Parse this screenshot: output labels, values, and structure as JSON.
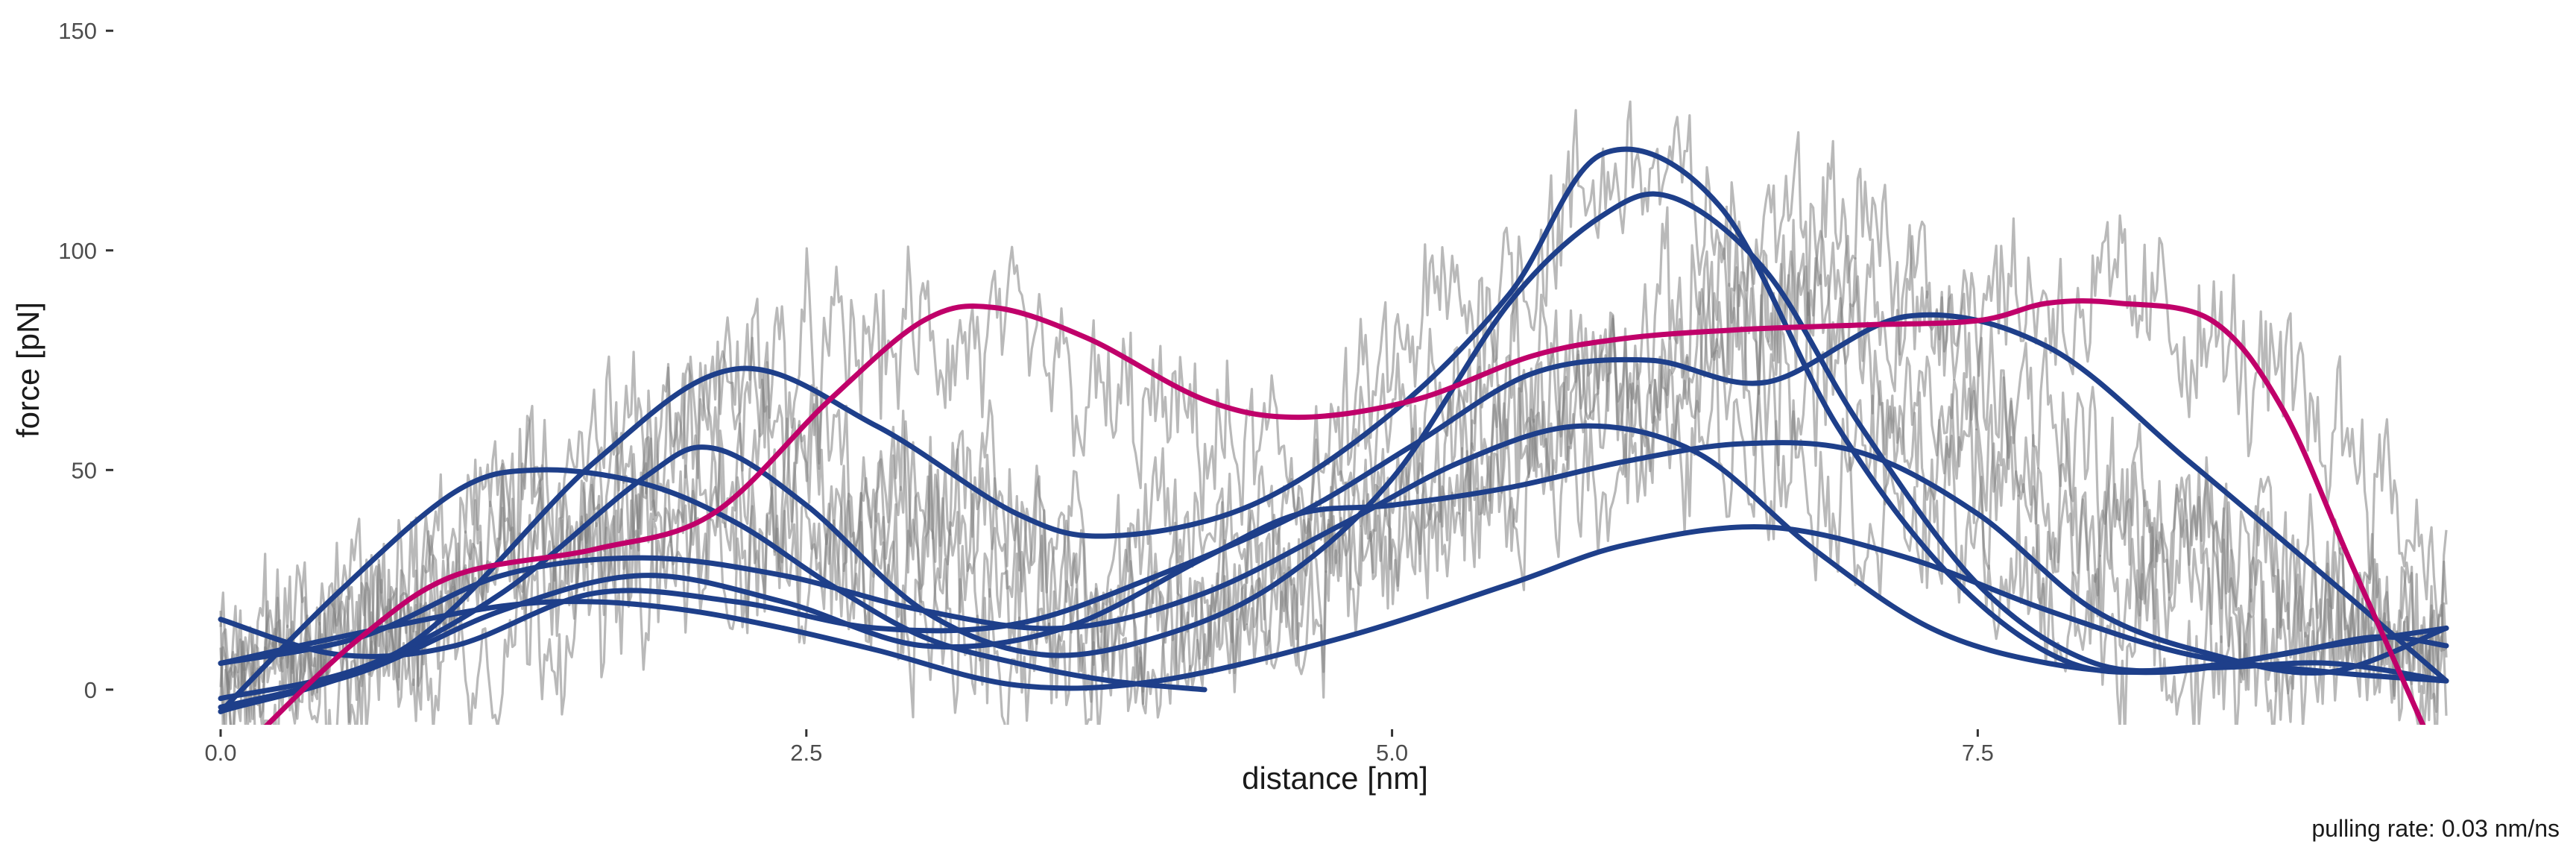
{
  "chart_data": {
    "type": "line",
    "xlabel": "distance [nm]",
    "ylabel": "force [pN]",
    "caption": "pulling rate: 0.03 nm/ns",
    "xlim": [
      0,
      9.5
    ],
    "ylim": [
      -8,
      157
    ],
    "x_ticks": [
      0.0,
      2.5,
      5.0,
      7.5
    ],
    "x_tick_labels": [
      "0.0",
      "2.5",
      "5.0",
      "7.5"
    ],
    "y_ticks": [
      0,
      50,
      100,
      150
    ],
    "y_tick_labels": [
      "0",
      "50",
      "100",
      "150"
    ],
    "grid": false,
    "legend": "none",
    "colors": {
      "fit": "#1e3f8a",
      "highlight": "#c0006a",
      "raw": "#808080",
      "text": "#4d4d4d"
    },
    "raw_traces": [
      {
        "x": [
          0,
          0.6,
          1.3,
          2.2,
          3.0,
          3.7,
          4.4,
          5.2,
          5.9,
          6.5,
          7.2,
          8.0,
          8.8,
          9.5
        ],
        "y": [
          -3,
          12,
          28,
          48,
          40,
          26,
          20,
          38,
          62,
          78,
          58,
          30,
          18,
          12
        ]
      },
      {
        "x": [
          0,
          0.7,
          1.5,
          2.3,
          3.1,
          3.9,
          4.6,
          5.3,
          6.0,
          6.7,
          7.3,
          8.1,
          8.9,
          9.5
        ],
        "y": [
          2,
          26,
          40,
          72,
          80,
          62,
          50,
          88,
          118,
          95,
          60,
          38,
          22,
          6
        ]
      },
      {
        "x": [
          0,
          0.8,
          1.6,
          2.4,
          3.2,
          4.0,
          4.8,
          5.5,
          6.2,
          6.9,
          7.6,
          8.3,
          9.0,
          9.5
        ],
        "y": [
          -5,
          8,
          20,
          35,
          22,
          14,
          32,
          60,
          85,
          108,
          70,
          40,
          18,
          4
        ]
      },
      {
        "x": [
          0,
          0.7,
          1.4,
          2.2,
          3.0,
          3.8,
          4.5,
          5.3,
          6.0,
          6.8,
          7.5,
          8.3,
          9.0,
          9.5
        ],
        "y": [
          5,
          20,
          52,
          62,
          45,
          30,
          42,
          66,
          78,
          86,
          92,
          84,
          60,
          30
        ]
      },
      {
        "x": [
          0,
          0.6,
          1.3,
          2.0,
          2.8,
          3.6,
          4.4,
          5.1,
          5.8,
          6.5,
          7.2,
          8.0,
          8.7,
          9.5
        ],
        "y": [
          0,
          15,
          30,
          40,
          18,
          8,
          16,
          40,
          52,
          58,
          38,
          14,
          6,
          10
        ]
      }
    ],
    "series": [
      {
        "color": "#1e3f8a",
        "x": [
          0,
          0.5,
          1.0,
          1.35,
          1.8,
          2.2,
          2.6,
          3.0,
          3.4,
          3.8,
          4.2
        ],
        "y": [
          -5,
          22,
          45,
          50,
          47,
          38,
          24,
          12,
          6,
          2,
          0
        ]
      },
      {
        "color": "#1e3f8a",
        "x": [
          0,
          0.6,
          1.2,
          1.6,
          2.0,
          2.4,
          2.8,
          3.4,
          4.0,
          4.8,
          5.5,
          6.0,
          6.6,
          7.2,
          7.8,
          8.4,
          9.0,
          9.5
        ],
        "y": [
          6,
          13,
          19,
          20,
          18,
          14,
          9,
          1,
          2,
          12,
          24,
          33,
          37,
          30,
          18,
          8,
          4,
          2
        ]
      },
      {
        "color": "#1e3f8a",
        "x": [
          0,
          0.8,
          1.6,
          2.2,
          2.8,
          3.4,
          3.8,
          4.4,
          5.0,
          5.5,
          5.9,
          6.4,
          6.9,
          7.4,
          7.9,
          8.4,
          9.0,
          9.5
        ],
        "y": [
          -5,
          10,
          52,
          73,
          60,
          40,
          35,
          42,
          63,
          90,
          122,
          110,
          60,
          25,
          6,
          5,
          10,
          14
        ]
      },
      {
        "color": "#1e3f8a",
        "x": [
          0,
          0.6,
          1.2,
          1.8,
          2.1,
          2.5,
          3.0,
          3.5,
          4.0,
          4.5,
          5.0,
          5.5,
          5.9,
          6.2,
          6.6,
          7.0,
          7.5,
          8.0,
          8.5,
          9.0,
          9.5
        ],
        "y": [
          -2,
          5,
          22,
          48,
          55,
          42,
          18,
          8,
          12,
          24,
          48,
          88,
          108,
          112,
          95,
          60,
          24,
          6,
          5,
          6,
          2
        ]
      },
      {
        "color": "#1e3f8a",
        "x": [
          0,
          0.5,
          1.0,
          1.6,
          2.2,
          2.8,
          3.4,
          4.0,
          4.6,
          5.1,
          5.6,
          6.1,
          6.6,
          7.2,
          7.8,
          8.4,
          9.0,
          9.5
        ],
        "y": [
          16,
          8,
          10,
          22,
          20,
          14,
          15,
          26,
          40,
          56,
          72,
          75,
          70,
          85,
          78,
          52,
          25,
          2
        ]
      },
      {
        "color": "#1e3f8a",
        "x": [
          0,
          0.6,
          1.2,
          1.8,
          2.4,
          3.0,
          3.6,
          4.2,
          4.8,
          5.3,
          5.8,
          6.3,
          6.8,
          7.3,
          7.8,
          8.3,
          8.8,
          9.2,
          9.5
        ],
        "y": [
          6,
          12,
          26,
          30,
          26,
          18,
          14,
          22,
          38,
          52,
          60,
          54,
          32,
          14,
          6,
          4,
          8,
          12,
          10
        ]
      },
      {
        "color": "#1e3f8a",
        "x": [
          0,
          0.6,
          1.2,
          1.8,
          2.4,
          3.0,
          3.6,
          4.2,
          4.6,
          5.0,
          5.5,
          6.0,
          6.5,
          7.0,
          7.5,
          8.0,
          8.5,
          9.0,
          9.5
        ],
        "y": [
          -4,
          4,
          18,
          26,
          20,
          10,
          14,
          30,
          40,
          42,
          46,
          52,
          56,
          54,
          40,
          18,
          8,
          4,
          14
        ]
      },
      {
        "color": "#c0006a",
        "x": [
          0,
          0.2,
          0.6,
          1.0,
          1.6,
          2.1,
          2.6,
          3.0,
          3.3,
          3.7,
          4.2,
          4.6,
          5.1,
          5.6,
          6.0,
          6.5,
          7.0,
          7.5,
          7.8,
          8.1,
          8.5,
          8.8,
          9.1,
          9.5
        ],
        "y": [
          -20,
          -8,
          12,
          26,
          32,
          40,
          66,
          84,
          87,
          80,
          66,
          62,
          66,
          76,
          80,
          82,
          83,
          84,
          88,
          88,
          84,
          64,
          28,
          -20
        ]
      }
    ]
  }
}
